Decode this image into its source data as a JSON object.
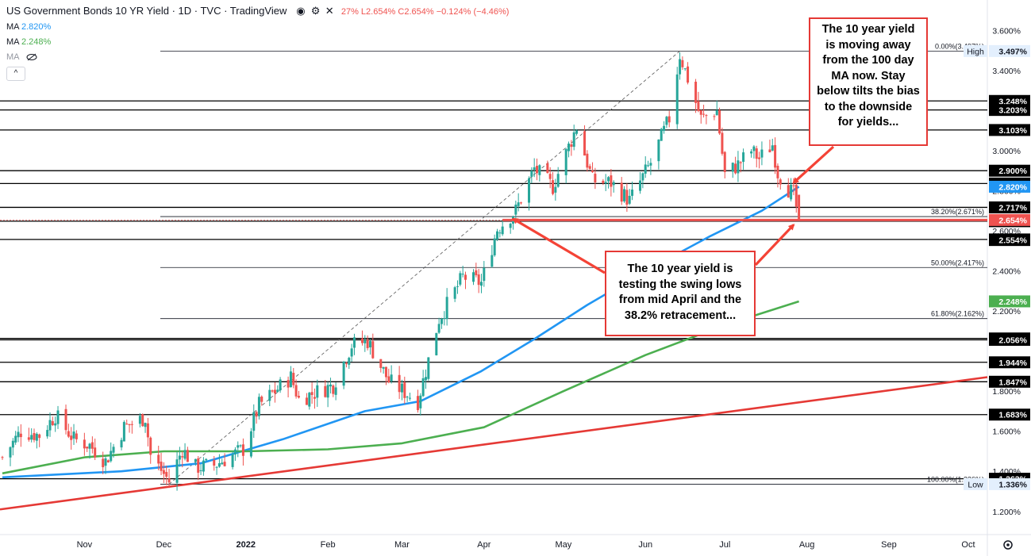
{
  "header": {
    "title": "US Government Bonds 10 YR Yield · 1D · TVC · TradingView",
    "ohlc_fragment": "27% L2.654% C2.654% −0.124% (−4.46%)",
    "ma_rows": [
      {
        "label": "MA",
        "value": "2.820%"
      },
      {
        "label": "MA",
        "value": "2.248%"
      },
      {
        "label": "MA",
        "value": ""
      }
    ],
    "collapse_label": "^"
  },
  "annotations": {
    "top_note": "The 10 year yield is moving away from the 100 day MA now. Stay below tilts the bias to the downside for yields...",
    "mid_note": "The 10 year yield is testing the swing lows from mid April and the 38.2% retracement..."
  },
  "colors": {
    "up": "#26a69a",
    "down": "#ef5350",
    "ma_blue": "#2196f3",
    "ma_green": "#4caf50",
    "trendline": "#e53935",
    "arrow": "#f44336"
  },
  "chart_data": {
    "type": "candlestick",
    "title": "US Government Bonds 10 YR Yield · 1D · TVC · TradingView",
    "y_unit": "%",
    "ylim": [
      1.12,
      3.72
    ],
    "y_ticks": [
      "3.600%",
      "3.400%",
      "3.000%",
      "2.800%",
      "2.600%",
      "2.400%",
      "2.200%",
      "1.800%",
      "1.600%",
      "1.400%",
      "1.200%"
    ],
    "x_ticks": [
      {
        "label": "Nov",
        "date": "2021-11-01"
      },
      {
        "label": "Dec",
        "date": "2021-12-01"
      },
      {
        "label": "2022",
        "date": "2022-01-01"
      },
      {
        "label": "Feb",
        "date": "2022-02-01"
      },
      {
        "label": "Mar",
        "date": "2022-03-01"
      },
      {
        "label": "Apr",
        "date": "2022-04-01"
      },
      {
        "label": "May",
        "date": "2022-05-01"
      },
      {
        "label": "Jun",
        "date": "2022-06-01"
      },
      {
        "label": "Jul",
        "date": "2022-07-01"
      },
      {
        "label": "Aug",
        "date": "2022-08-01"
      },
      {
        "label": "Sep",
        "date": "2022-09-01"
      },
      {
        "label": "Oct",
        "date": "2022-10-01"
      }
    ],
    "x_range": [
      "2021-10-01",
      "2022-10-07"
    ],
    "price_path": [
      [
        "2021-10-01",
        1.47
      ],
      [
        "2021-10-08",
        1.6
      ],
      [
        "2021-10-15",
        1.58
      ],
      [
        "2021-10-21",
        1.68
      ],
      [
        "2021-10-28",
        1.56
      ],
      [
        "2021-11-03",
        1.53
      ],
      [
        "2021-11-09",
        1.45
      ],
      [
        "2021-11-16",
        1.62
      ],
      [
        "2021-11-24",
        1.67
      ],
      [
        "2021-11-26",
        1.48
      ],
      [
        "2021-12-03",
        1.35
      ],
      [
        "2021-12-08",
        1.51
      ],
      [
        "2021-12-13",
        1.42
      ],
      [
        "2021-12-20",
        1.43
      ],
      [
        "2021-12-31",
        1.51
      ],
      [
        "2022-01-06",
        1.73
      ],
      [
        "2022-01-18",
        1.87
      ],
      [
        "2022-01-21",
        1.76
      ],
      [
        "2022-02-03",
        1.83
      ],
      [
        "2022-02-10",
        2.03
      ],
      [
        "2022-02-16",
        2.05
      ],
      [
        "2022-02-24",
        1.85
      ],
      [
        "2022-03-07",
        1.75
      ],
      [
        "2022-03-15",
        2.16
      ],
      [
        "2022-03-24",
        2.37
      ],
      [
        "2022-03-31",
        2.34
      ],
      [
        "2022-04-06",
        2.61
      ],
      [
        "2022-04-13",
        2.7
      ],
      [
        "2022-04-20",
        2.91
      ],
      [
        "2022-04-27",
        2.82
      ],
      [
        "2022-05-06",
        3.12
      ],
      [
        "2022-05-12",
        2.85
      ],
      [
        "2022-05-19",
        2.84
      ],
      [
        "2022-05-26",
        2.75
      ],
      [
        "2022-06-03",
        2.94
      ],
      [
        "2022-06-10",
        3.16
      ],
      [
        "2022-06-14",
        3.48
      ],
      [
        "2022-06-22",
        3.16
      ],
      [
        "2022-06-28",
        3.2
      ],
      [
        "2022-07-01",
        2.88
      ],
      [
        "2022-07-06",
        2.93
      ],
      [
        "2022-07-11",
        3.0
      ],
      [
        "2022-07-14",
        2.96
      ],
      [
        "2022-07-19",
        3.03
      ],
      [
        "2022-07-21",
        2.89
      ],
      [
        "2022-07-25",
        2.81
      ],
      [
        "2022-07-27",
        2.78
      ],
      [
        "2022-07-29",
        2.654
      ]
    ],
    "series": [
      {
        "name": "MA",
        "color": "#2196f3",
        "points": [
          [
            "2021-10-01",
            1.37
          ],
          [
            "2021-11-15",
            1.4
          ],
          [
            "2021-12-15",
            1.44
          ],
          [
            "2022-01-15",
            1.56
          ],
          [
            "2022-02-15",
            1.7
          ],
          [
            "2022-03-08",
            1.75
          ],
          [
            "2022-03-31",
            1.9
          ],
          [
            "2022-04-20",
            2.06
          ],
          [
            "2022-05-10",
            2.23
          ],
          [
            "2022-06-01",
            2.4
          ],
          [
            "2022-06-25",
            2.57
          ],
          [
            "2022-07-15",
            2.7
          ],
          [
            "2022-07-29",
            2.82
          ]
        ]
      },
      {
        "name": "MA",
        "color": "#4caf50",
        "points": [
          [
            "2021-10-01",
            1.39
          ],
          [
            "2021-11-01",
            1.47
          ],
          [
            "2021-12-01",
            1.5
          ],
          [
            "2022-01-01",
            1.5
          ],
          [
            "2022-02-01",
            1.51
          ],
          [
            "2022-03-01",
            1.54
          ],
          [
            "2022-04-01",
            1.62
          ],
          [
            "2022-05-01",
            1.8
          ],
          [
            "2022-06-01",
            1.98
          ],
          [
            "2022-07-01",
            2.13
          ],
          [
            "2022-07-29",
            2.248
          ]
        ]
      }
    ],
    "trendline": {
      "color": "#e53935",
      "points": [
        [
          "2021-10-01",
          1.21
        ],
        [
          "2022-10-07",
          1.87
        ]
      ]
    },
    "retracement": {
      "from": [
        "2021-12-03",
        1.336
      ],
      "to": [
        "2022-06-14",
        3.497
      ]
    },
    "horizontal_lines": [
      {
        "value": 3.497,
        "label": "0.00%(3.497%)",
        "tag": "3.497%",
        "tag_prefix": "High",
        "style": "fib"
      },
      {
        "value": 3.248,
        "tag": "3.248%",
        "style": "black"
      },
      {
        "value": 3.203,
        "tag": "3.203%",
        "style": "black"
      },
      {
        "value": 3.103,
        "tag": "3.103%",
        "style": "black"
      },
      {
        "value": 2.9,
        "tag": "2.900%",
        "style": "black"
      },
      {
        "value": 2.836,
        "tag": "2.836%",
        "style": "black"
      },
      {
        "value": 2.717,
        "tag": "2.717%",
        "style": "black"
      },
      {
        "value": 2.671,
        "label": "38.20%(2.671%)",
        "style": "fib"
      },
      {
        "value": 2.648,
        "tag": "2.648%",
        "style": "black"
      },
      {
        "value": 2.557,
        "tag": "2.557%",
        "style": "black"
      },
      {
        "value": 2.554,
        "tag": "2.554%",
        "style": "none"
      },
      {
        "value": 2.417,
        "label": "50.00%(2.417%)",
        "style": "fib"
      },
      {
        "value": 2.162,
        "label": "61.80%(2.162%)",
        "style": "fib"
      },
      {
        "value": 2.063,
        "tag": "2.063%",
        "style": "black"
      },
      {
        "value": 2.056,
        "tag": "2.056%",
        "style": "black"
      },
      {
        "value": 1.944,
        "tag": "1.944%",
        "style": "black"
      },
      {
        "value": 1.847,
        "tag": "1.847%",
        "style": "black"
      },
      {
        "value": 1.683,
        "tag": "1.683%",
        "style": "black"
      },
      {
        "value": 1.363,
        "tag": "1.363%",
        "style": "black"
      },
      {
        "value": 1.336,
        "label": "100.00%(1.336%)",
        "tag": "1.336%",
        "tag_prefix": "Low",
        "style": "fib"
      }
    ],
    "price_tags": [
      {
        "value": 2.82,
        "tag": "2.820%",
        "color": "#2196f3"
      },
      {
        "value": 2.654,
        "tag": "2.654%",
        "color": "#ef5350"
      },
      {
        "value": 2.248,
        "tag": "2.248%",
        "color": "#4caf50"
      }
    ],
    "support_line": {
      "value": 2.654,
      "from": "2022-04-08",
      "to": "2022-10-07",
      "color": "#ef5350"
    }
  }
}
